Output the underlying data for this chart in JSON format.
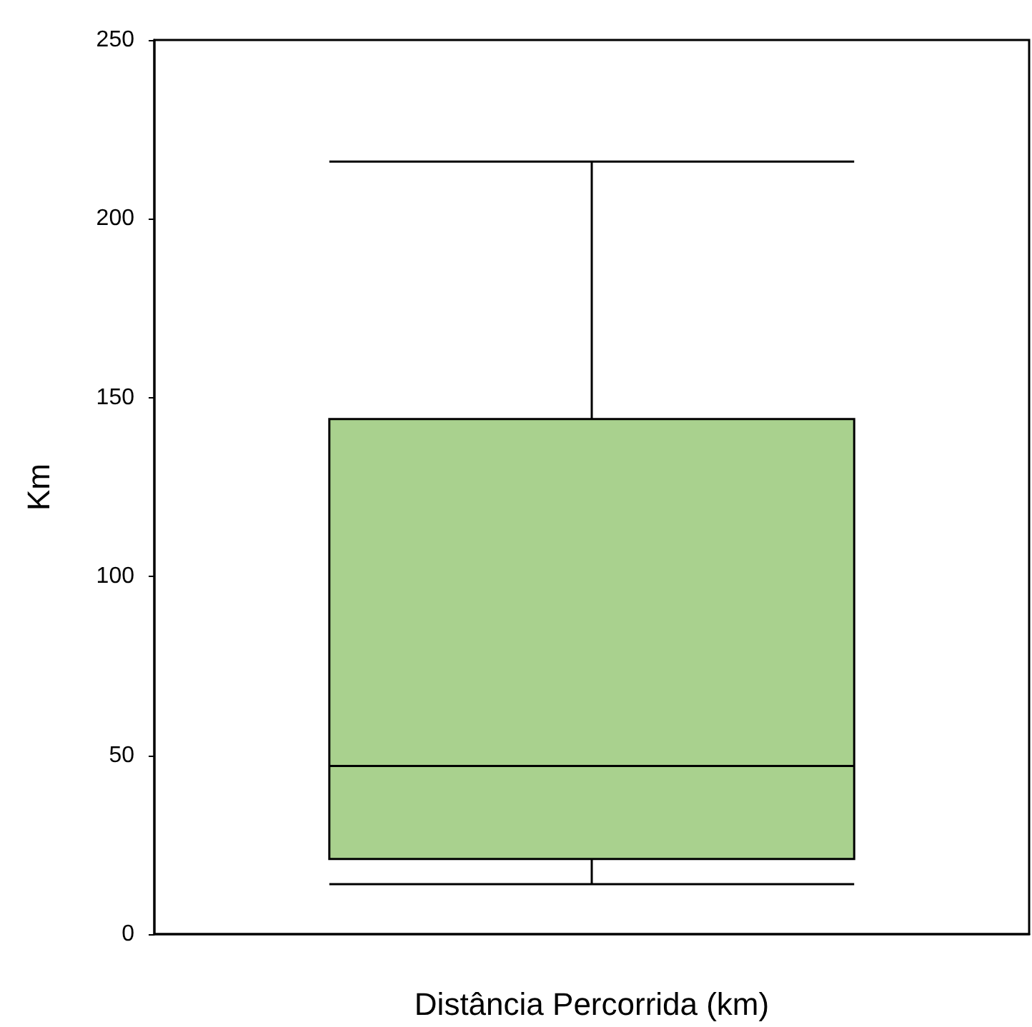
{
  "chart_data": {
    "type": "box",
    "xlabel": "Distância Percorrida (km)",
    "ylabel": "Km",
    "categories": [
      null
    ],
    "boxes": [
      {
        "low": 14,
        "q1": 21,
        "median": 47,
        "q3": 144,
        "high": 216
      }
    ],
    "color": "#a9d18e",
    "ylim": [
      0,
      250
    ],
    "yticks": [
      0,
      50,
      100,
      150,
      200,
      250
    ],
    "grid": false
  }
}
